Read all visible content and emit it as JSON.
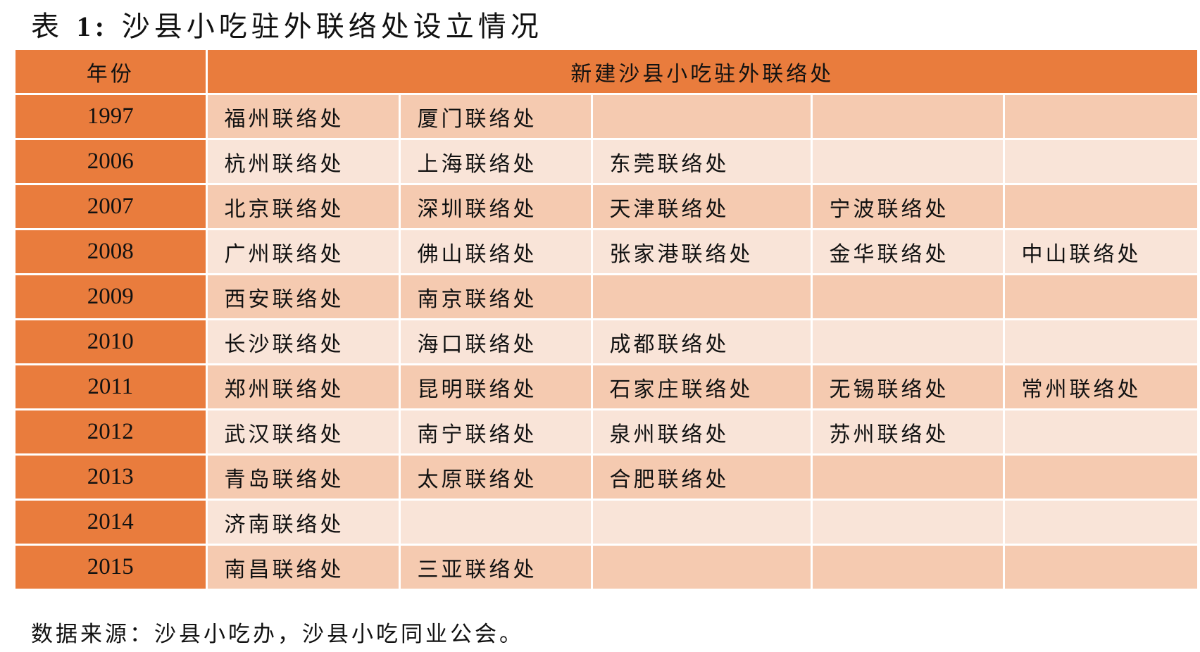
{
  "title": {
    "prefix": "表 ",
    "number": "1:",
    "text": " 沙县小吃驻外联络处设立情况"
  },
  "table": {
    "headers": [
      "年份",
      "新建沙县小吃驻外联络处"
    ],
    "rows": [
      {
        "year": "1997",
        "offices": [
          "福州联络处",
          "厦门联络处",
          "",
          "",
          ""
        ]
      },
      {
        "year": "2006",
        "offices": [
          "杭州联络处",
          "上海联络处",
          "东莞联络处",
          "",
          ""
        ]
      },
      {
        "year": "2007",
        "offices": [
          "北京联络处",
          "深圳联络处",
          "天津联络处",
          "宁波联络处",
          ""
        ]
      },
      {
        "year": "2008",
        "offices": [
          "广州联络处",
          "佛山联络处",
          "张家港联络处",
          "金华联络处",
          "中山联络处"
        ]
      },
      {
        "year": "2009",
        "offices": [
          "西安联络处",
          "南京联络处",
          "",
          "",
          ""
        ]
      },
      {
        "year": "2010",
        "offices": [
          "长沙联络处",
          "海口联络处",
          "成都联络处",
          "",
          ""
        ]
      },
      {
        "year": "2011",
        "offices": [
          "郑州联络处",
          "昆明联络处",
          "石家庄联络处",
          "无锡联络处",
          "常州联络处"
        ]
      },
      {
        "year": "2012",
        "offices": [
          "武汉联络处",
          "南宁联络处",
          "泉州联络处",
          "苏州联络处",
          ""
        ]
      },
      {
        "year": "2013",
        "offices": [
          "青岛联络处",
          "太原联络处",
          "合肥联络处",
          "",
          ""
        ]
      },
      {
        "year": "2014",
        "offices": [
          "济南联络处",
          "",
          "",
          "",
          ""
        ]
      },
      {
        "year": "2015",
        "offices": [
          "南昌联络处",
          "三亚联络处",
          "",
          "",
          ""
        ]
      }
    ]
  },
  "footer": "数据来源：沙县小吃办，沙县小吃同业公会。",
  "colors": {
    "header": "#e97c3d",
    "row_dark": "#f5cab0",
    "row_light": "#f9e4d8"
  }
}
